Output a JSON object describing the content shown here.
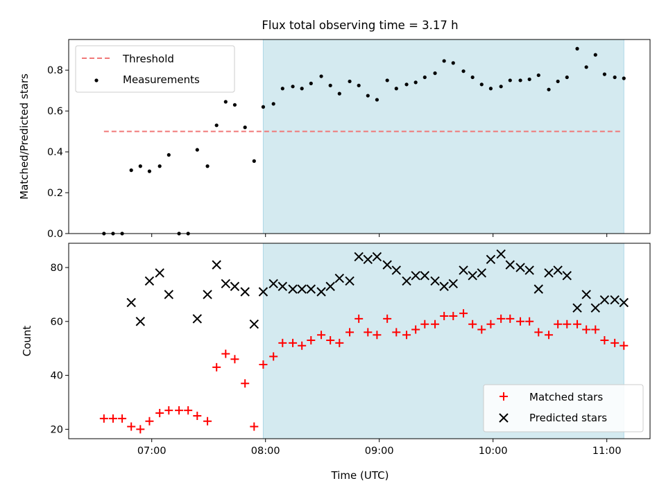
{
  "title": "Flux total observing time = 3.17 h",
  "chart_data": [
    {
      "type": "scatter",
      "panel": "top",
      "ylabel": "Matched/Predicted stars",
      "ylim": [
        0,
        0.95
      ],
      "yticks": [
        0.0,
        0.2,
        0.4,
        0.6,
        0.8
      ],
      "ytick_labels": [
        "0.0",
        "0.2",
        "0.4",
        "0.6",
        "0.8"
      ],
      "xlim_hours": [
        6.27,
        11.38
      ],
      "shaded_interval_hours": [
        7.98,
        11.15
      ],
      "shade_color": "#d4eaf0",
      "legend_position": "upper left",
      "threshold": {
        "name": "Threshold",
        "value": 0.5,
        "x_start": 6.58,
        "x_end": 11.12,
        "color": "#f07878",
        "style": "dashed"
      },
      "series": [
        {
          "name": "Measurements",
          "color": "#000000",
          "marker": "dot",
          "x": [
            6.58,
            6.66,
            6.74,
            6.82,
            6.9,
            6.98,
            7.07,
            7.15,
            7.24,
            7.32,
            7.4,
            7.49,
            7.57,
            7.65,
            7.73,
            7.82,
            7.9,
            7.98,
            8.07,
            8.15,
            8.24,
            8.32,
            8.4,
            8.49,
            8.57,
            8.65,
            8.74,
            8.82,
            8.9,
            8.98,
            9.07,
            9.15,
            9.24,
            9.32,
            9.4,
            9.49,
            9.57,
            9.65,
            9.74,
            9.82,
            9.9,
            9.98,
            10.07,
            10.15,
            10.24,
            10.32,
            10.4,
            10.49,
            10.57,
            10.65,
            10.74,
            10.82,
            10.9,
            10.98,
            11.07,
            11.15
          ],
          "y": [
            0.0,
            0.0,
            0.0,
            0.31,
            0.33,
            0.305,
            0.33,
            0.385,
            0.0,
            0.0,
            0.41,
            0.33,
            0.53,
            0.645,
            0.63,
            0.52,
            0.355,
            0.62,
            0.635,
            0.71,
            0.72,
            0.71,
            0.735,
            0.77,
            0.725,
            0.685,
            0.745,
            0.725,
            0.675,
            0.655,
            0.75,
            0.71,
            0.73,
            0.74,
            0.765,
            0.785,
            0.845,
            0.835,
            0.795,
            0.765,
            0.73,
            0.71,
            0.72,
            0.75,
            0.75,
            0.755,
            0.775,
            0.705,
            0.745,
            0.765,
            0.905,
            0.815,
            0.875,
            0.78,
            0.765,
            0.76
          ]
        }
      ]
    },
    {
      "type": "scatter",
      "panel": "bottom",
      "xlabel": "Time (UTC)",
      "ylabel": "Count",
      "ylim": [
        16.5,
        89
      ],
      "yticks": [
        20,
        40,
        60,
        80
      ],
      "ytick_labels": [
        "20",
        "40",
        "60",
        "80"
      ],
      "xlim_hours": [
        6.27,
        11.38
      ],
      "xticks_hours": [
        7,
        8,
        9,
        10,
        11
      ],
      "xtick_labels": [
        "07:00",
        "08:00",
        "09:00",
        "10:00",
        "11:00"
      ],
      "shaded_interval_hours": [
        7.98,
        11.15
      ],
      "shade_color": "#d4eaf0",
      "legend_position": "lower right",
      "series": [
        {
          "name": "Matched stars",
          "color": "#ff0000",
          "marker": "plus",
          "x": [
            6.58,
            6.66,
            6.74,
            6.82,
            6.9,
            6.98,
            7.07,
            7.15,
            7.24,
            7.32,
            7.4,
            7.49,
            7.57,
            7.65,
            7.73,
            7.82,
            7.9,
            7.98,
            8.07,
            8.15,
            8.24,
            8.32,
            8.4,
            8.49,
            8.57,
            8.65,
            8.74,
            8.82,
            8.9,
            8.98,
            9.07,
            9.15,
            9.24,
            9.32,
            9.4,
            9.49,
            9.57,
            9.65,
            9.74,
            9.82,
            9.9,
            9.98,
            10.07,
            10.15,
            10.24,
            10.32,
            10.4,
            10.49,
            10.57,
            10.65,
            10.74,
            10.82,
            10.9,
            10.98,
            11.07,
            11.15
          ],
          "y": [
            24,
            24,
            24,
            21,
            20,
            23,
            26,
            27,
            27,
            27,
            25,
            23,
            43,
            48,
            46,
            37,
            21,
            44,
            47,
            52,
            52,
            51,
            53,
            55,
            53,
            52,
            56,
            61,
            56,
            55,
            61,
            56,
            55,
            57,
            59,
            59,
            62,
            62,
            63,
            59,
            57,
            59,
            61,
            61,
            60,
            60,
            56,
            55,
            59,
            59,
            59,
            57,
            57,
            53,
            52,
            51
          ]
        },
        {
          "name": "Predicted stars",
          "color": "#000000",
          "marker": "x",
          "x": [
            6.82,
            6.9,
            6.98,
            7.07,
            7.15,
            7.4,
            7.49,
            7.57,
            7.65,
            7.73,
            7.82,
            7.9,
            7.98,
            8.07,
            8.15,
            8.24,
            8.32,
            8.4,
            8.49,
            8.57,
            8.65,
            8.74,
            8.82,
            8.9,
            8.98,
            9.07,
            9.15,
            9.24,
            9.32,
            9.4,
            9.49,
            9.57,
            9.65,
            9.74,
            9.82,
            9.9,
            9.98,
            10.07,
            10.15,
            10.24,
            10.32,
            10.4,
            10.49,
            10.57,
            10.65,
            10.74,
            10.82,
            10.9,
            10.98,
            11.07,
            11.15
          ],
          "y": [
            67,
            60,
            75,
            78,
            70,
            61,
            70,
            81,
            74,
            73,
            71,
            59,
            71,
            74,
            73,
            72,
            72,
            72,
            71,
            73,
            76,
            75,
            84,
            83,
            84,
            81,
            79,
            75,
            77,
            77,
            75,
            73,
            74,
            79,
            77,
            78,
            83,
            85,
            81,
            80,
            79,
            72,
            78,
            79,
            77,
            65,
            70,
            65,
            68,
            68,
            67
          ]
        }
      ]
    }
  ]
}
